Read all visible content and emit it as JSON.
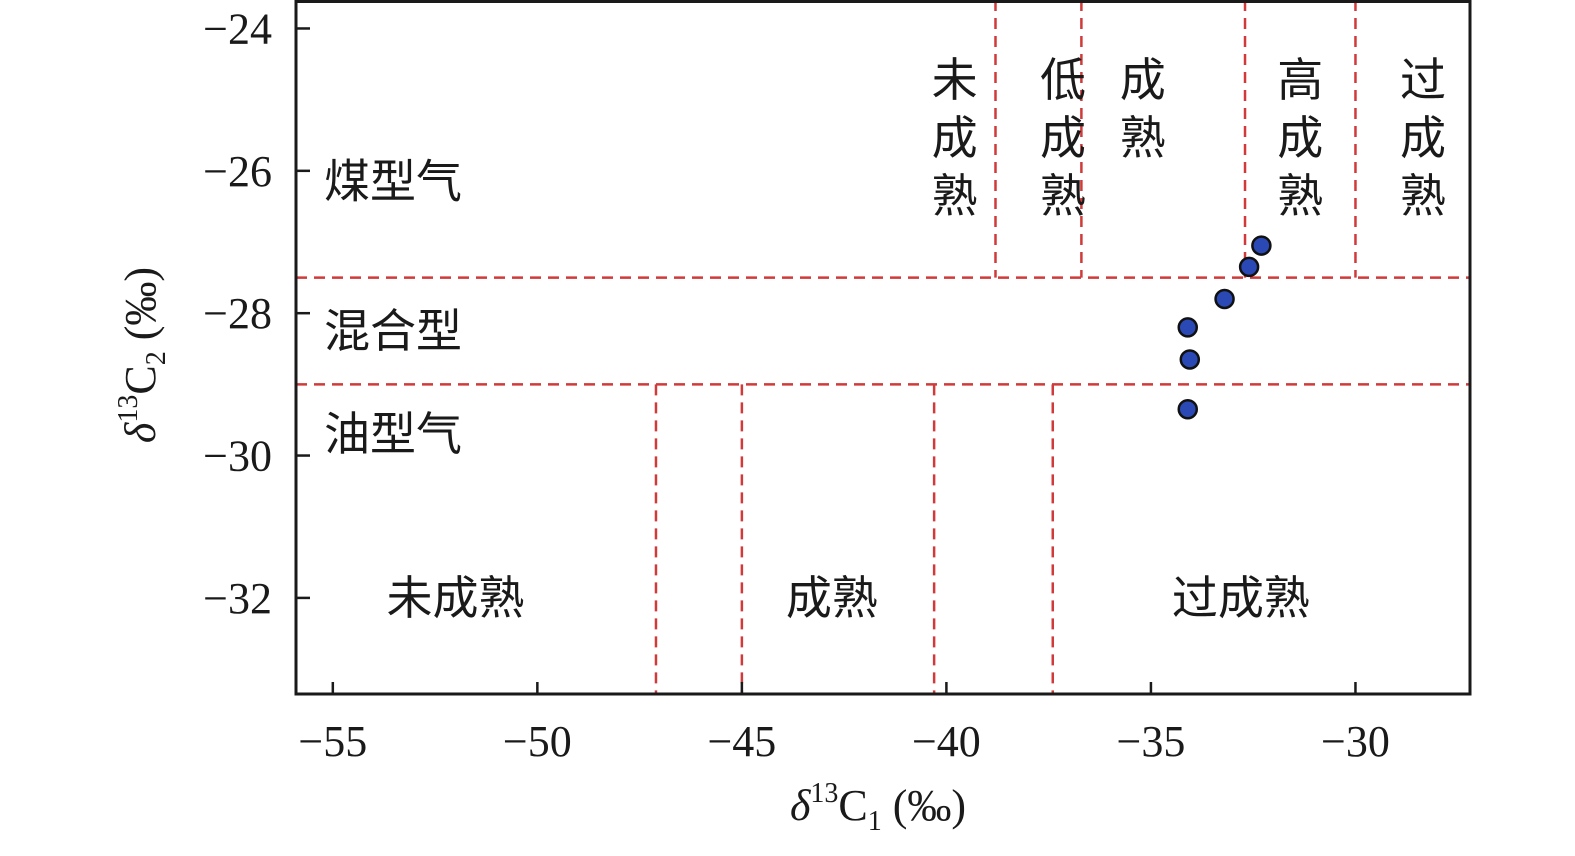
{
  "chart_data": {
    "type": "scatter",
    "xlabel": {
      "delta": "δ",
      "sup": "13",
      "base": "C",
      "sub": "1",
      "unit": " (‰)"
    },
    "ylabel": {
      "delta": "δ",
      "sup": "13",
      "base": "C",
      "sub": "2",
      "unit": " (‰)"
    },
    "xlim": [
      -55.9,
      -27.2
    ],
    "ylim": [
      -33.35,
      -23.6
    ],
    "xticks": [
      -55,
      -50,
      -45,
      -40,
      -35,
      -30
    ],
    "xtick_labels": [
      "−55",
      "−50",
      "−45",
      "−40",
      "−35",
      "−30"
    ],
    "yticks": [
      -24,
      -26,
      -28,
      -30,
      -32
    ],
    "ytick_labels": [
      "−24",
      "−26",
      "−28",
      "−30",
      "−32"
    ],
    "grid": false,
    "series": [
      {
        "x": [
          -32.3,
          -32.6,
          -33.2,
          -34.1,
          -34.05,
          -34.1
        ],
        "y": [
          -27.05,
          -27.35,
          -27.8,
          -28.2,
          -28.65,
          -29.35
        ],
        "color": "#2a49b5"
      }
    ],
    "boundaries": {
      "color": "#d03a3a",
      "horizontal_y": [
        -27.5,
        -29.0
      ],
      "upper_vertical_x": [
        -38.8,
        -36.7,
        -32.7,
        -30.0
      ],
      "lower_vertical_x": [
        -47.1,
        -45.0,
        -40.3,
        -37.4
      ]
    },
    "gas_type_labels": [
      {
        "text": "煤型气",
        "y": -26.15
      },
      {
        "text": "混合型",
        "y": -28.25
      },
      {
        "text": "油型气",
        "y": -29.7
      }
    ],
    "upper_maturity_labels": [
      {
        "chars": [
          "未",
          "成",
          "熟"
        ],
        "x": -39.8
      },
      {
        "chars": [
          "低",
          "成",
          "熟"
        ],
        "x": -37.15
      },
      {
        "chars": [
          "成",
          "熟"
        ],
        "x": -35.2
      },
      {
        "chars": [
          "高",
          "成",
          "熟"
        ],
        "x": -31.35
      },
      {
        "chars": [
          "过",
          "成",
          "熟"
        ],
        "x": -28.35
      }
    ],
    "lower_maturity_labels": [
      {
        "text": "未成熟",
        "x": -52.0
      },
      {
        "text": "成熟",
        "x": -42.8
      },
      {
        "text": "过成熟",
        "x": -32.8
      }
    ]
  }
}
